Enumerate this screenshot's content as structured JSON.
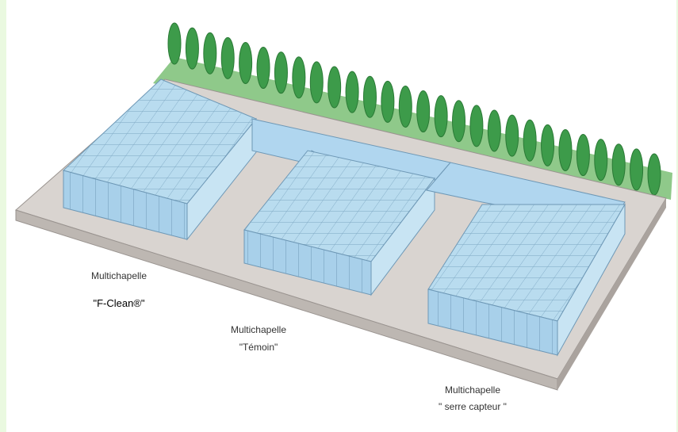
{
  "labels": [
    {
      "title": "Multichapelle",
      "subtitle": "\"F-Clean®\""
    },
    {
      "title": "Multichapelle",
      "subtitle": "\"Témoin\""
    },
    {
      "title": "Multichapelle",
      "subtitle": "\" serre capteur \""
    }
  ]
}
